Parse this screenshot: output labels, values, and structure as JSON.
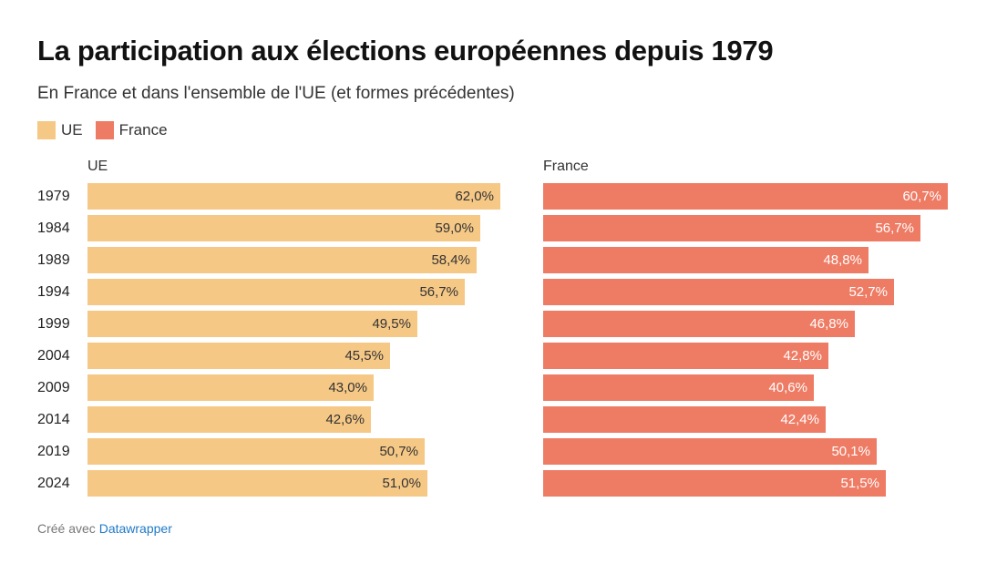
{
  "header": {
    "title": "La participation aux élections européennes depuis 1979",
    "subtitle": "En France et dans l'ensemble de l'UE (et formes précédentes)"
  },
  "legend": [
    {
      "label": "UE",
      "color": "#f6c886"
    },
    {
      "label": "France",
      "color": "#ee7b64"
    }
  ],
  "footer": {
    "prefix": "Créé avec",
    "link": "Datawrapper"
  },
  "chart_data": {
    "type": "bar",
    "orientation": "horizontal",
    "categories": [
      "1979",
      "1984",
      "1989",
      "1994",
      "1999",
      "2004",
      "2009",
      "2014",
      "2019",
      "2024"
    ],
    "panels": [
      {
        "title": "UE",
        "color": "#f6c886",
        "label_color": "#333333",
        "values": [
          62.0,
          59.0,
          58.4,
          56.7,
          49.5,
          45.5,
          43.0,
          42.6,
          50.7,
          51.0
        ],
        "labels": [
          "62,0%",
          "59,0%",
          "58,4%",
          "56,7%",
          "49,5%",
          "45,5%",
          "43,0%",
          "42,6%",
          "50,7%",
          "51,0%"
        ]
      },
      {
        "title": "France",
        "color": "#ee7b64",
        "label_color": "#ffffff",
        "values": [
          60.7,
          56.7,
          48.8,
          52.7,
          46.8,
          42.8,
          40.6,
          42.4,
          50.1,
          51.5
        ],
        "labels": [
          "60,7%",
          "56,7%",
          "48,8%",
          "52,7%",
          "46,8%",
          "42,8%",
          "40,6%",
          "42,4%",
          "50,1%",
          "51,5%"
        ]
      }
    ]
  }
}
